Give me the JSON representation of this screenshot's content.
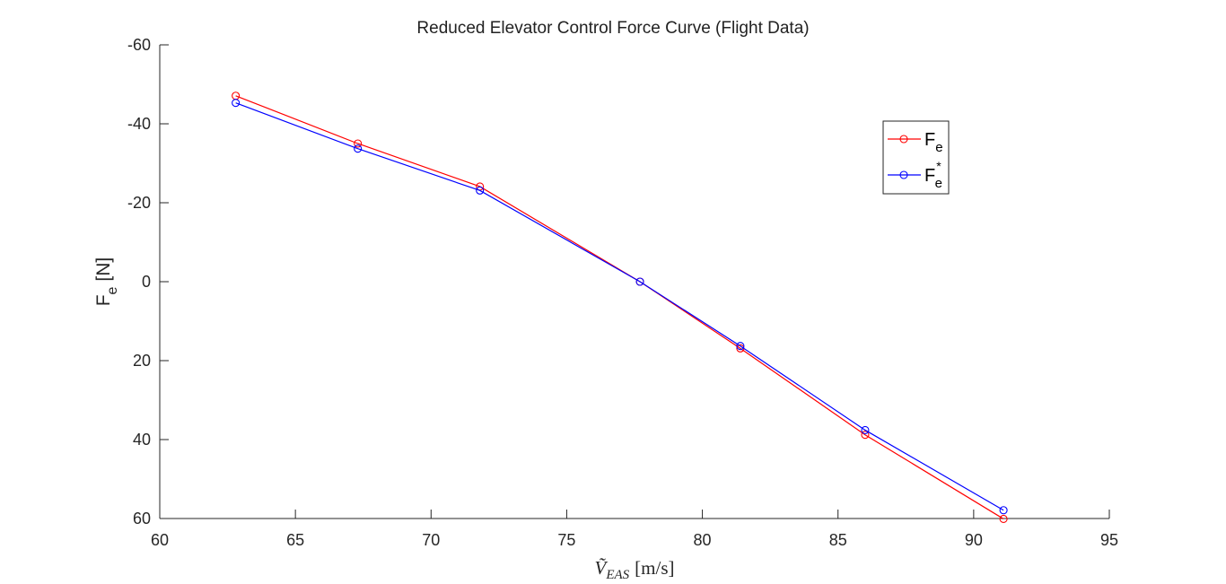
{
  "chart_data": {
    "type": "line",
    "title": "Reduced Elevator Control Force Curve (Flight Data)",
    "xlabel": "Ṽ",
    "xlabel_sub": "EAS",
    "xlabel_unit": "[m/s]",
    "ylabel": "F",
    "ylabel_sub": "e",
    "ylabel_unit": "[N]",
    "xlim": [
      60,
      95
    ],
    "ylim": [
      -60,
      60
    ],
    "y_reversed": true,
    "xticks": [
      60,
      65,
      70,
      75,
      80,
      85,
      90,
      95
    ],
    "yticks": [
      -60,
      -40,
      -20,
      0,
      20,
      40,
      60
    ],
    "grid": false,
    "legend_position": "top-right",
    "series": [
      {
        "name": "F",
        "name_sub": "e",
        "name_sup": "",
        "color": "#ff0000",
        "marker": "circle",
        "x": [
          62.8,
          67.3,
          71.8,
          77.7,
          81.4,
          86.0,
          91.1
        ],
        "y": [
          -47.1,
          -35.0,
          -24.1,
          0.0,
          16.9,
          38.8,
          60.1
        ]
      },
      {
        "name": "F",
        "name_sub": "e",
        "name_sup": "*",
        "color": "#0000ff",
        "marker": "circle",
        "x": [
          62.8,
          67.3,
          71.8,
          77.7,
          81.4,
          86.0,
          91.1
        ],
        "y": [
          -45.3,
          -33.7,
          -23.1,
          0.0,
          16.3,
          37.6,
          57.9
        ]
      }
    ]
  }
}
